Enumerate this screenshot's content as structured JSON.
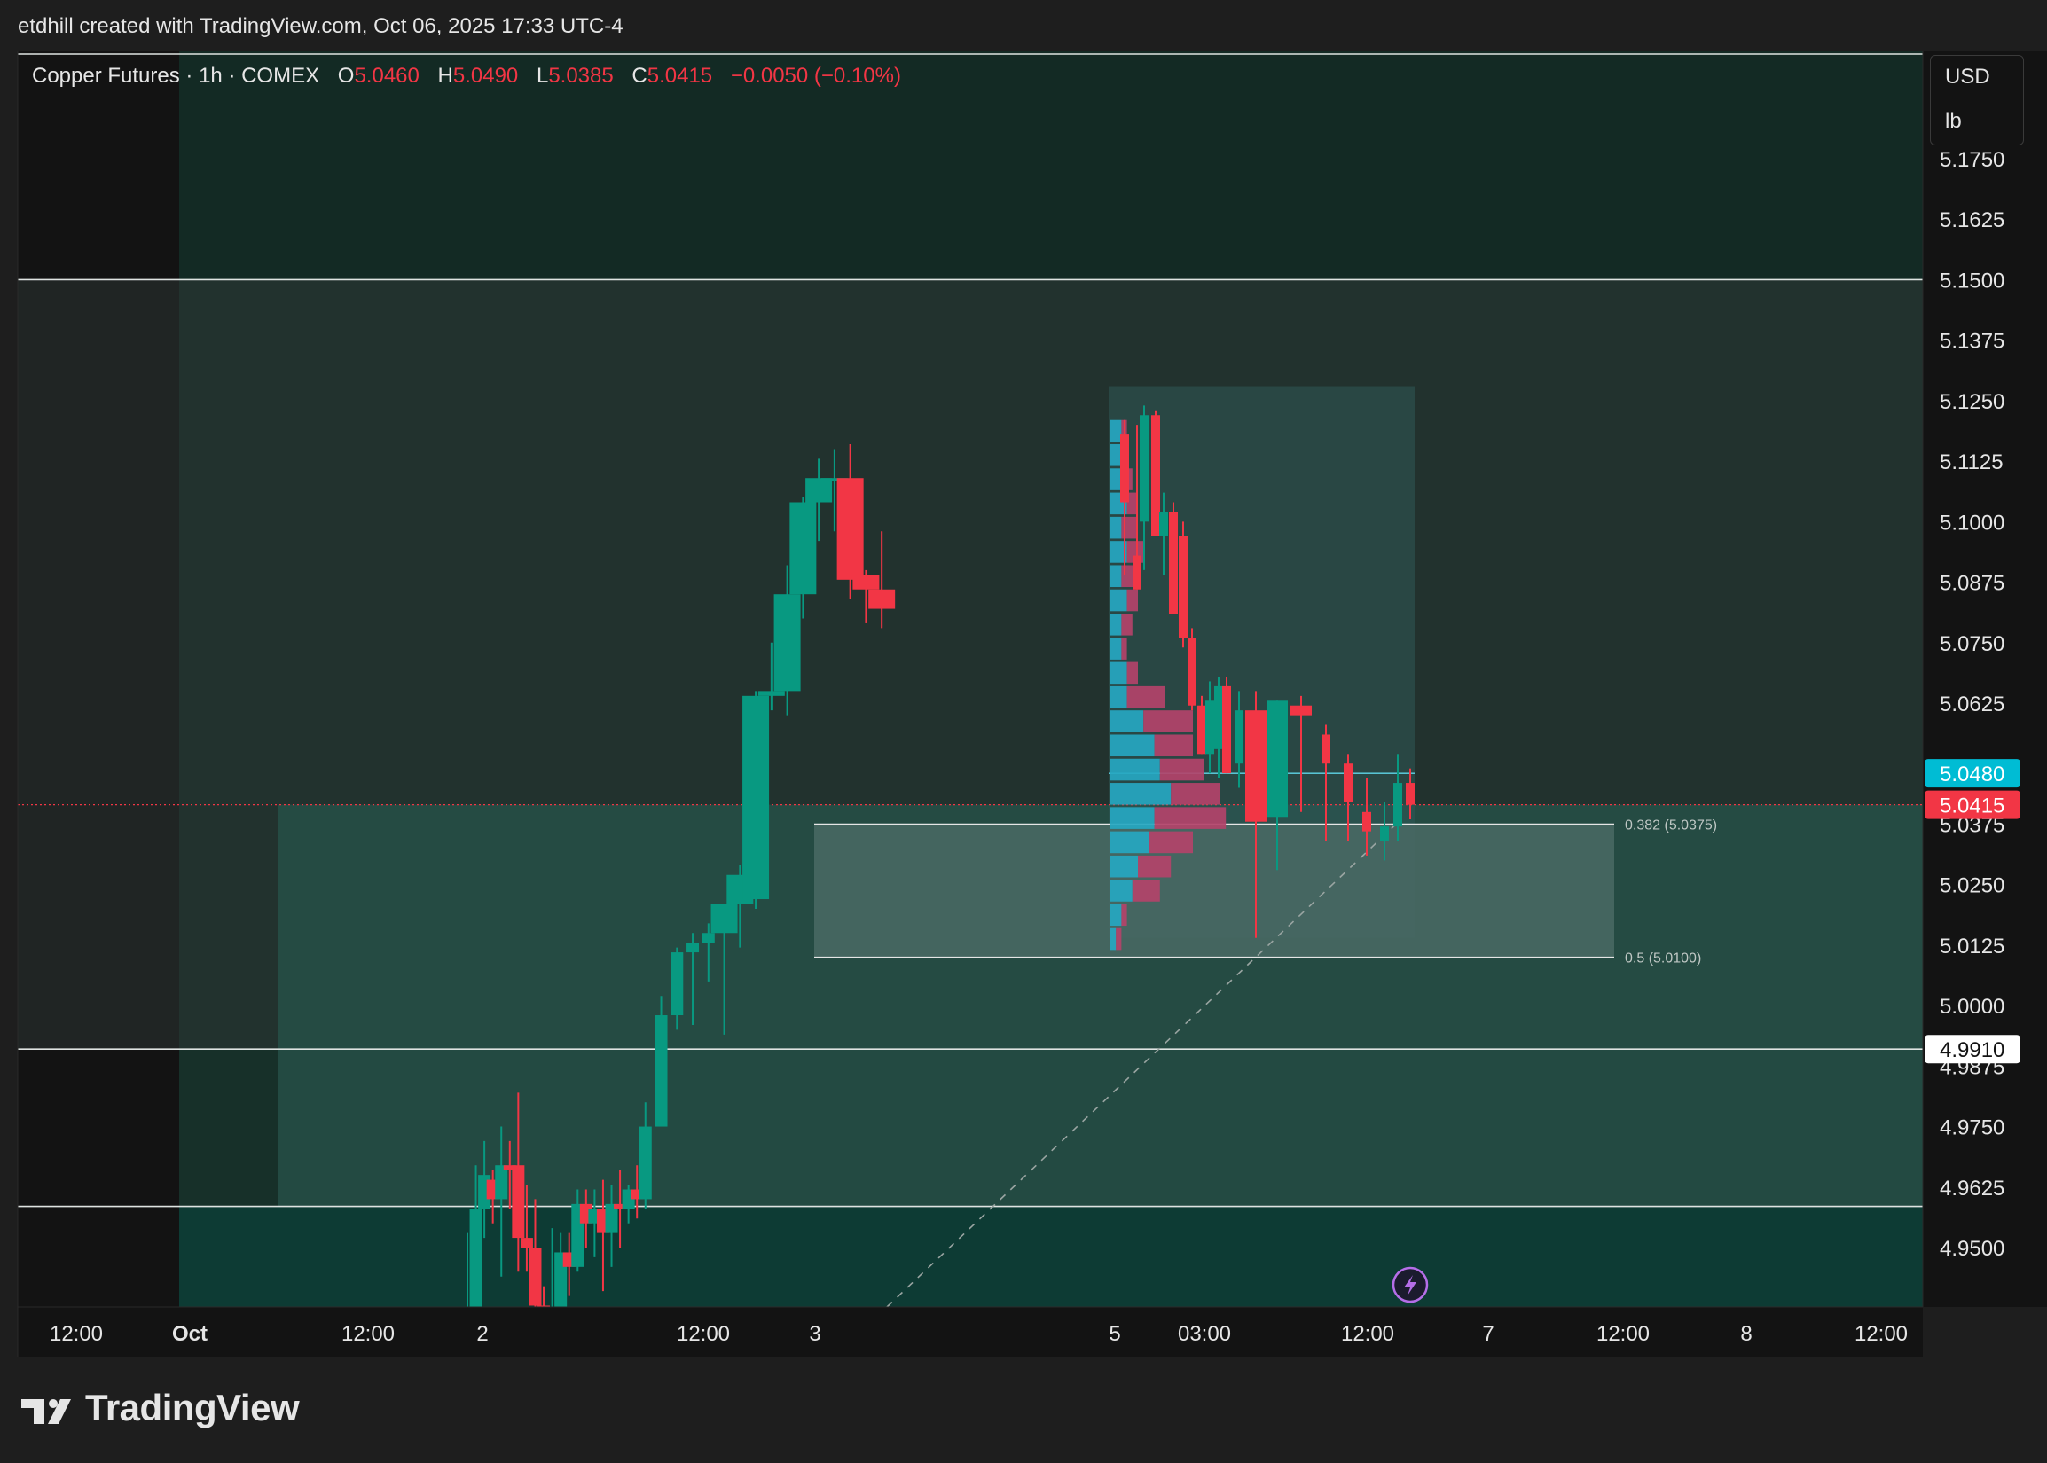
{
  "header": {
    "attribution": "etdhill created with TradingView.com, Oct 06, 2025 17:33 UTC-4"
  },
  "legend": {
    "symbol": "Copper Futures · 1h · COMEX",
    "o_label": "O",
    "o": "5.0460",
    "h_label": "H",
    "h": "5.0490",
    "l_label": "L",
    "l": "5.0385",
    "c_label": "C",
    "c": "5.0415",
    "change": "−0.0050 (−0.10%)"
  },
  "units": {
    "currency": "USD",
    "unit": "lb"
  },
  "brand": {
    "name": "TradingView"
  },
  "colors": {
    "up": "#089981",
    "down": "#f23645",
    "background": "#1e1e1e",
    "pane": "#131313",
    "price_tag_blue": "#00bcd4",
    "price_tag_red": "#f23645",
    "volume_profile_up": "#26a7c1",
    "volume_profile_down": "#b3436a"
  },
  "chart_data": {
    "type": "candlestick",
    "ylim": [
      4.935,
      5.185
    ],
    "y_ticks": [
      "5.1750",
      "5.1625",
      "5.1500",
      "5.1375",
      "5.1250",
      "5.1125",
      "5.1000",
      "5.0875",
      "5.0750",
      "5.0625",
      "5.0375",
      "5.0250",
      "5.0125",
      "5.0000",
      "4.9875",
      "4.9750",
      "4.9625",
      "4.9500"
    ],
    "x_ticks": [
      "12:00",
      "Oct",
      "12:00",
      "2",
      "12:00",
      "3",
      "5",
      "03:00",
      "12:00",
      "7",
      "12:00",
      "8",
      "12:00"
    ],
    "price_tags": [
      {
        "label": "5.0480",
        "value": 5.048,
        "color": "#00bcd4"
      },
      {
        "label": "5.0415",
        "value": 5.0415,
        "color": "#f23645"
      },
      {
        "label": "4.9910",
        "value": 4.991,
        "color": "#ffffff"
      }
    ],
    "horizontal_levels": [
      5.15,
      4.991,
      4.9585
    ],
    "fib_levels": [
      {
        "label": "0.382 (5.0375)",
        "value": 5.0375
      },
      {
        "label": "0.5 (5.0100)",
        "value": 5.01
      }
    ],
    "candles": [
      {
        "o": 4.935,
        "h": 4.953,
        "l": 4.935,
        "c": 4.935
      },
      {
        "o": 4.935,
        "h": 4.967,
        "l": 4.935,
        "c": 4.958
      },
      {
        "o": 4.958,
        "h": 4.972,
        "l": 4.952,
        "c": 4.965
      },
      {
        "o": 4.964,
        "h": 4.966,
        "l": 4.955,
        "c": 4.96
      },
      {
        "o": 4.96,
        "h": 4.975,
        "l": 4.944,
        "c": 4.967
      },
      {
        "o": 4.967,
        "h": 4.972,
        "l": 4.958,
        "c": 4.966
      },
      {
        "o": 4.967,
        "h": 4.982,
        "l": 4.945,
        "c": 4.952
      },
      {
        "o": 4.952,
        "h": 4.963,
        "l": 4.945,
        "c": 4.95
      },
      {
        "o": 4.95,
        "h": 4.96,
        "l": 4.936,
        "c": 4.938
      },
      {
        "o": 4.938,
        "h": 4.942,
        "l": 4.935,
        "c": 4.936
      },
      {
        "o": 4.936,
        "h": 4.954,
        "l": 4.935,
        "c": 4.936
      },
      {
        "o": 4.936,
        "h": 4.953,
        "l": 4.935,
        "c": 4.949
      },
      {
        "o": 4.949,
        "h": 4.953,
        "l": 4.94,
        "c": 4.946
      },
      {
        "o": 4.946,
        "h": 4.962,
        "l": 4.945,
        "c": 4.959
      },
      {
        "o": 4.959,
        "h": 4.962,
        "l": 4.95,
        "c": 4.955
      },
      {
        "o": 4.955,
        "h": 4.962,
        "l": 4.948,
        "c": 4.958
      },
      {
        "o": 4.958,
        "h": 4.964,
        "l": 4.941,
        "c": 4.953
      },
      {
        "o": 4.953,
        "h": 4.963,
        "l": 4.946,
        "c": 4.959
      },
      {
        "o": 4.959,
        "h": 4.966,
        "l": 4.95,
        "c": 4.958
      },
      {
        "o": 4.958,
        "h": 4.963,
        "l": 4.955,
        "c": 4.962
      },
      {
        "o": 4.962,
        "h": 4.967,
        "l": 4.956,
        "c": 4.96
      },
      {
        "o": 4.96,
        "h": 4.98,
        "l": 4.958,
        "c": 4.975
      },
      {
        "o": 4.975,
        "h": 5.002,
        "l": 4.975,
        "c": 4.998
      },
      {
        "o": 4.998,
        "h": 5.012,
        "l": 4.995,
        "c": 5.011
      },
      {
        "o": 5.011,
        "h": 5.015,
        "l": 4.996,
        "c": 5.013
      },
      {
        "o": 5.013,
        "h": 5.017,
        "l": 5.005,
        "c": 5.015
      },
      {
        "o": 5.015,
        "h": 5.02,
        "l": 4.994,
        "c": 5.021
      },
      {
        "o": 5.021,
        "h": 5.029,
        "l": 5.012,
        "c": 5.027
      },
      {
        "o": 5.022,
        "h": 5.065,
        "l": 5.02,
        "c": 5.064
      },
      {
        "o": 5.064,
        "h": 5.075,
        "l": 5.061,
        "c": 5.065
      },
      {
        "o": 5.065,
        "h": 5.091,
        "l": 5.06,
        "c": 5.085
      },
      {
        "o": 5.085,
        "h": 5.105,
        "l": 5.08,
        "c": 5.104
      },
      {
        "o": 5.104,
        "h": 5.113,
        "l": 5.096,
        "c": 5.109
      },
      {
        "o": 5.109,
        "h": 5.115,
        "l": 5.098,
        "c": 5.109
      },
      {
        "o": 5.109,
        "h": 5.116,
        "l": 5.084,
        "c": 5.088
      },
      {
        "o": 5.089,
        "h": 5.09,
        "l": 5.079,
        "c": 5.086
      },
      {
        "o": 5.086,
        "h": 5.098,
        "l": 5.078,
        "c": 5.082
      }
    ],
    "volume_profile": [
      {
        "price": 5.121,
        "up": 2,
        "down": 1
      },
      {
        "price": 5.116,
        "up": 2,
        "down": 1
      },
      {
        "price": 5.111,
        "up": 2,
        "down": 2
      },
      {
        "price": 5.106,
        "up": 3,
        "down": 2
      },
      {
        "price": 5.101,
        "up": 2,
        "down": 3
      },
      {
        "price": 5.096,
        "up": 3,
        "down": 3
      },
      {
        "price": 5.091,
        "up": 2,
        "down": 3
      },
      {
        "price": 5.086,
        "up": 3,
        "down": 2
      },
      {
        "price": 5.081,
        "up": 2,
        "down": 2
      },
      {
        "price": 5.076,
        "up": 2,
        "down": 1
      },
      {
        "price": 5.071,
        "up": 3,
        "down": 2
      },
      {
        "price": 5.066,
        "up": 3,
        "down": 7
      },
      {
        "price": 5.061,
        "up": 6,
        "down": 9
      },
      {
        "price": 5.056,
        "up": 8,
        "down": 7
      },
      {
        "price": 5.051,
        "up": 9,
        "down": 8
      },
      {
        "price": 5.046,
        "up": 11,
        "down": 9
      },
      {
        "price": 5.041,
        "up": 8,
        "down": 13
      },
      {
        "price": 5.036,
        "up": 7,
        "down": 8
      },
      {
        "price": 5.031,
        "up": 5,
        "down": 6
      },
      {
        "price": 5.026,
        "up": 4,
        "down": 5
      },
      {
        "price": 5.021,
        "up": 2,
        "down": 1
      },
      {
        "price": 5.016,
        "up": 1,
        "down": 1
      }
    ]
  }
}
